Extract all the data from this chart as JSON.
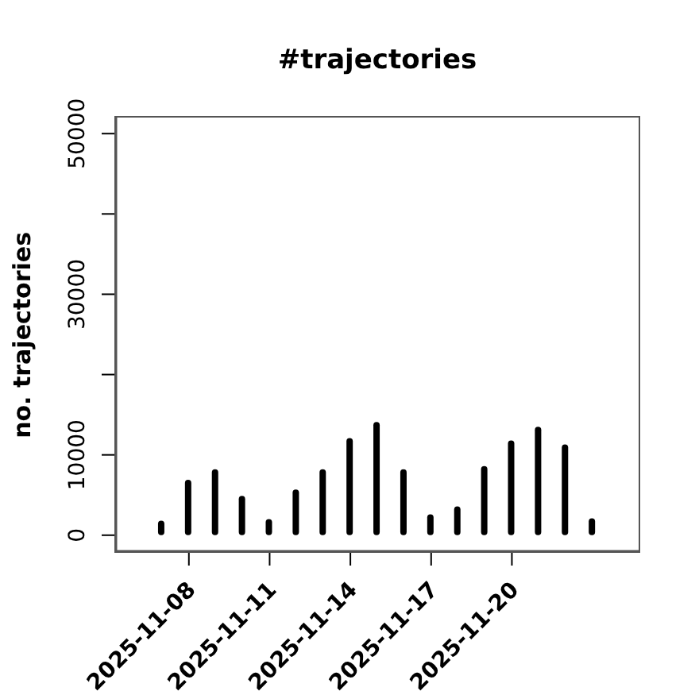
{
  "chart_data": {
    "type": "bar",
    "title": "#trajectories",
    "ylabel": "no. trajectories",
    "x": [
      "2025-11-07",
      "2025-11-08",
      "2025-11-09",
      "2025-11-10",
      "2025-11-11",
      "2025-11-12",
      "2025-11-13",
      "2025-11-14",
      "2025-11-15",
      "2025-11-16",
      "2025-11-17",
      "2025-11-18",
      "2025-11-19",
      "2025-11-20",
      "2025-11-21",
      "2025-11-22",
      "2025-11-23"
    ],
    "values": [
      1800,
      6900,
      8200,
      4900,
      2000,
      5700,
      8200,
      12100,
      14100,
      8200,
      2600,
      3600,
      8600,
      11800,
      13500,
      11300,
      2100
    ],
    "color": "#000000",
    "xlim": [
      "2025-11-05T07:00",
      "2025-11-24T17:00"
    ],
    "xticks": [
      "2025-11-08",
      "2025-11-11",
      "2025-11-14",
      "2025-11-17",
      "2025-11-20"
    ],
    "ylim": [
      -2000,
      52000
    ],
    "yticks": [
      0,
      10000,
      {
        "value": 20000,
        "label": null
      },
      30000,
      {
        "value": 40000,
        "label": null
      },
      50000
    ],
    "grid": false,
    "legend": false
  }
}
